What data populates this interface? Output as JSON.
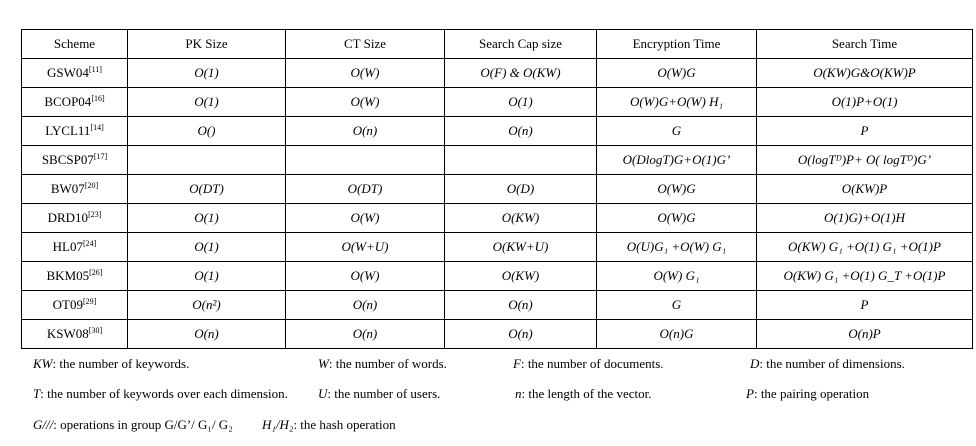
{
  "table": {
    "headers": [
      "Scheme",
      "PK Size",
      "CT Size",
      "Search Cap size",
      "Encryption Time",
      "Search Time"
    ],
    "rows": [
      {
        "scheme": "GSW04",
        "ref": "[11]",
        "pk": "O(1)",
        "ct": "O(W)",
        "cap": "O(F) & O(KW)",
        "enc": "O(W)G",
        "search": "O(KW)G&O(KW)P"
      },
      {
        "scheme": "BCOP04",
        "ref": "[16]",
        "pk": "O(1)",
        "ct": "O(W)",
        "cap": "O(1)",
        "enc": "O(W)G+O(W) H₁",
        "search": "O(1)P+O(1)"
      },
      {
        "scheme": "LYCL11",
        "ref": "[14]",
        "pk": "O()",
        "ct": "O(n)",
        "cap": "O(n)",
        "enc": "G",
        "search": "P"
      },
      {
        "scheme": "SBCSP07",
        "ref": "[17]",
        "pk": "",
        "ct": "",
        "cap": "",
        "enc": "O(DlogT)G+O(1)G’",
        "search": "O(logTᴰ)P+ O( logTᴰ)G’"
      },
      {
        "scheme": "BW07",
        "ref": "[20]",
        "pk": "O(DT)",
        "ct": "O(DT)",
        "cap": "O(D)",
        "enc": "O(W)G",
        "search": "O(KW)P"
      },
      {
        "scheme": "DRD10",
        "ref": "[23]",
        "pk": "O(1)",
        "ct": "O(W)",
        "cap": "O(KW)",
        "enc": "O(W)G",
        "search": "O(1)G)+O(1)H"
      },
      {
        "scheme": "HL07",
        "ref": "[24]",
        "pk": "O(1)",
        "ct": "O(W+U)",
        "cap": "O(KW+U)",
        "enc": "O(U)G₁ +O(W) G₁",
        "search": "O(KW) G₁ +O(1) G₁ +O(1)P"
      },
      {
        "scheme": "BKM05",
        "ref": "[26]",
        "pk": "O(1)",
        "ct": "O(W)",
        "cap": "O(KW)",
        "enc": "O(W) G₁",
        "search": "O(KW) G₁ +O(1) G_T +O(1)P"
      },
      {
        "scheme": "OT09",
        "ref": "[29]",
        "pk": "O(n²)",
        "ct": "O(n)",
        "cap": "O(n)",
        "enc": "G",
        "search": "P"
      },
      {
        "scheme": "KSW08",
        "ref": "[30]",
        "pk": "O(n)",
        "ct": "O(n)",
        "cap": "O(n)",
        "enc": "O(n)G",
        "search": "O(n)P"
      }
    ]
  },
  "legend": {
    "kw_sym": "KW",
    "kw_text": ": the number of keywords.",
    "w_sym": "W",
    "w_text": ": the number of words.",
    "f_sym": "F",
    "f_text": ": the number of documents.",
    "d_sym": "D",
    "d_text": ": the number of dimensions.",
    "t_sym": "T",
    "t_text": ": the number of keywords over each dimension.",
    "u_sym": "U",
    "u_text": ": the number of users.",
    "n_sym": "n",
    "n_text": ": the length of the vector.",
    "p_sym": "P",
    "p_text": ": the pairing operation",
    "g_sym": "G///",
    "g_text": ": operations in group G/G’/ G₁/ G₂",
    "h_sym": "H₁/H₂",
    "h_text": ": the hash operation"
  }
}
